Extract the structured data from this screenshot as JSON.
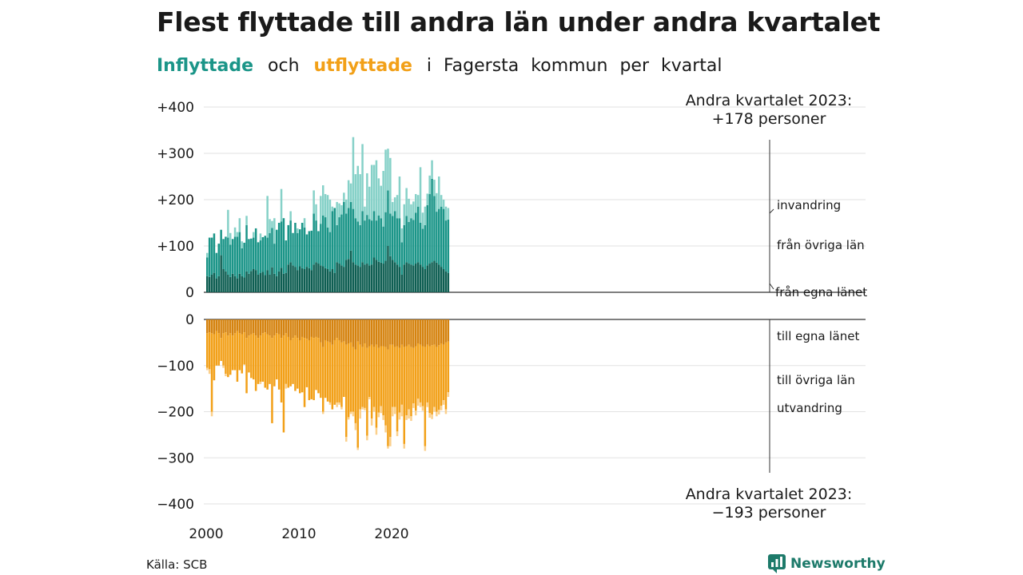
{
  "title": "Flest flyttade till andra län under andra kvartalet",
  "subtitle": {
    "in_word": "Inflyttade",
    "and_word": "och",
    "out_word": "utflyttade",
    "rest": [
      "i",
      "Fagersta",
      "kommun",
      "per",
      "kvartal"
    ]
  },
  "source": "Källa: SCB",
  "logo_text": "Newsworthy",
  "logo_icon": "newsworthy-chart-icon",
  "colors": {
    "in_local": "#0e5e52",
    "in_county": "#1b9588",
    "in_immigration": "#86d1c8",
    "out_local": "#d5830f",
    "out_county": "#f2a018",
    "out_emigration": "#fbd08c",
    "in_text": "#1b9588",
    "out_text": "#f2a018"
  },
  "chart_data": {
    "type": "bar",
    "stacked": true,
    "x_ticks": [
      "2000",
      "2010",
      "2020"
    ],
    "upper_y_ticks": [
      "+400",
      "+300",
      "+200",
      "+100",
      "0"
    ],
    "lower_y_ticks": [
      "0",
      "−100",
      "−200",
      "−300",
      "−400"
    ],
    "upper_ylim": [
      0,
      400
    ],
    "lower_ylim": [
      -400,
      0
    ],
    "annotation_top": [
      "Andra kvartalet 2023:",
      "+178 personer"
    ],
    "annotation_bottom": [
      "Andra kvartalet 2023:",
      "−193 personer"
    ],
    "series_labels_in": [
      "invandring",
      "från övriga län",
      "från egna länet"
    ],
    "series_labels_out": [
      "till egna länet",
      "till övriga län",
      "utvandring"
    ],
    "grid": true,
    "quarters_start": "2000-Q1",
    "inflow": {
      "local": [
        35,
        33,
        38,
        42,
        30,
        35,
        80,
        50,
        45,
        38,
        33,
        40,
        35,
        30,
        40,
        35,
        32,
        45,
        40,
        46,
        50,
        48,
        38,
        42,
        44,
        37,
        48,
        38,
        54,
        40,
        35,
        45,
        53,
        40,
        42,
        60,
        65,
        58,
        55,
        48,
        56,
        52,
        50,
        55,
        52,
        48,
        60,
        65,
        62,
        58,
        56,
        52,
        50,
        45,
        50,
        42,
        65,
        62,
        58,
        55,
        70,
        72,
        90,
        65,
        60,
        58,
        55,
        65,
        60,
        62,
        58,
        60,
        75,
        70,
        66,
        64,
        62,
        68,
        100,
        78,
        70,
        65,
        60,
        55,
        38,
        60,
        65,
        62,
        60,
        58,
        62,
        65,
        60,
        55,
        50,
        58,
        62,
        65,
        68,
        64,
        60,
        55,
        50,
        45,
        42
      ],
      "county": [
        40,
        85,
        80,
        85,
        55,
        70,
        55,
        65,
        75,
        80,
        70,
        75,
        85,
        90,
        90,
        60,
        75,
        100,
        75,
        70,
        68,
        90,
        70,
        70,
        75,
        85,
        70,
        90,
        85,
        65,
        100,
        105,
        100,
        120,
        70,
        85,
        90,
        70,
        95,
        80,
        80,
        98,
        90,
        70,
        80,
        85,
        110,
        90,
        70,
        90,
        110,
        110,
        90,
        85,
        125,
        140,
        80,
        100,
        110,
        140,
        100,
        110,
        105,
        115,
        100,
        95,
        90,
        110,
        95,
        105,
        100,
        95,
        100,
        85,
        100,
        96,
        80,
        105,
        120,
        92,
        95,
        110,
        100,
        105,
        70,
        85,
        100,
        90,
        100,
        98,
        110,
        120,
        90,
        82,
        95,
        130,
        150,
        180,
        140,
        110,
        120,
        130,
        130,
        110,
        115
      ],
      "immigration": [
        10,
        0,
        0,
        0,
        0,
        0,
        0,
        0,
        0,
        60,
        25,
        0,
        20,
        10,
        30,
        15,
        0,
        20,
        0,
        0,
        12,
        0,
        0,
        15,
        0,
        0,
        90,
        30,
        15,
        55,
        0,
        0,
        70,
        0,
        0,
        0,
        20,
        0,
        0,
        10,
        0,
        0,
        20,
        0,
        0,
        0,
        50,
        35,
        0,
        60,
        65,
        50,
        70,
        70,
        10,
        0,
        50,
        30,
        20,
        20,
        30,
        60,
        40,
        155,
        95,
        120,
        110,
        145,
        30,
        90,
        70,
        120,
        100,
        130,
        80,
        70,
        120,
        135,
        90,
        120,
        30,
        30,
        50,
        90,
        30,
        45,
        60,
        50,
        30,
        40,
        40,
        25,
        120,
        35,
        40,
        25,
        40,
        40,
        35,
        40,
        70,
        25,
        20,
        30,
        25
      ],
      "outflow": {
        "local": [
          30,
          28,
          30,
          32,
          25,
          30,
          40,
          30,
          28,
          35,
          30,
          35,
          30,
          25,
          30,
          32,
          28,
          40,
          35,
          32,
          30,
          35,
          40,
          35,
          30,
          28,
          32,
          35,
          40,
          35,
          30,
          32,
          40,
          35,
          30,
          38,
          45,
          40,
          35,
          40,
          45,
          38,
          40,
          42,
          45,
          38,
          40,
          38,
          40,
          50,
          60,
          45,
          48,
          50,
          55,
          45,
          40,
          45,
          50,
          48,
          55,
          52,
          50,
          60,
          65,
          48,
          55,
          60,
          52,
          62,
          58,
          55,
          60,
          55,
          62,
          58,
          58,
          60,
          65,
          55,
          55,
          60,
          58,
          62,
          55,
          60,
          58,
          55,
          60,
          62,
          58,
          52,
          55,
          58,
          60,
          55,
          58,
          56,
          55,
          60,
          56,
          52,
          55,
          50,
          48
        ],
        "county": [
          75,
          80,
          170,
          100,
          75,
          70,
          50,
          70,
          90,
          90,
          90,
          75,
          80,
          110,
          80,
          85,
          70,
          120,
          80,
          95,
          100,
          120,
          100,
          100,
          105,
          120,
          120,
          105,
          185,
          110,
          100,
          120,
          140,
          210,
          110,
          110,
          100,
          100,
          120,
          110,
          115,
          120,
          150,
          105,
          130,
          135,
          135,
          115,
          120,
          120,
          140,
          125,
          130,
          130,
          140,
          140,
          140,
          135,
          140,
          120,
          200,
          160,
          150,
          140,
          160,
          230,
          140,
          130,
          140,
          190,
          110,
          160,
          130,
          180,
          140,
          130,
          150,
          170,
          210,
          200,
          135,
          130,
          185,
          140,
          130,
          210,
          150,
          140,
          150,
          120,
          140,
          120,
          125,
          130,
          215,
          125,
          145,
          150,
          135,
          140,
          140,
          135,
          120,
          145,
          110
        ],
        "emigration": [
          5,
          10,
          10,
          0,
          0,
          0,
          0,
          5,
          5,
          0,
          0,
          0,
          0,
          0,
          0,
          0,
          0,
          0,
          0,
          0,
          0,
          0,
          0,
          5,
          0,
          0,
          0,
          0,
          0,
          0,
          0,
          0,
          0,
          0,
          10,
          0,
          0,
          0,
          0,
          0,
          0,
          0,
          0,
          0,
          0,
          0,
          0,
          0,
          0,
          0,
          5,
          0,
          0,
          5,
          0,
          0,
          10,
          5,
          5,
          0,
          10,
          5,
          5,
          10,
          15,
          5,
          20,
          5,
          5,
          10,
          5,
          15,
          10,
          15,
          10,
          15,
          10,
          15,
          5,
          20,
          20,
          15,
          10,
          15,
          25,
          10,
          10,
          20,
          10,
          10,
          10,
          15,
          10,
          10,
          10,
          10,
          10,
          10,
          10,
          10,
          10,
          10,
          10,
          10,
          10
        ]
      }
    }
  }
}
